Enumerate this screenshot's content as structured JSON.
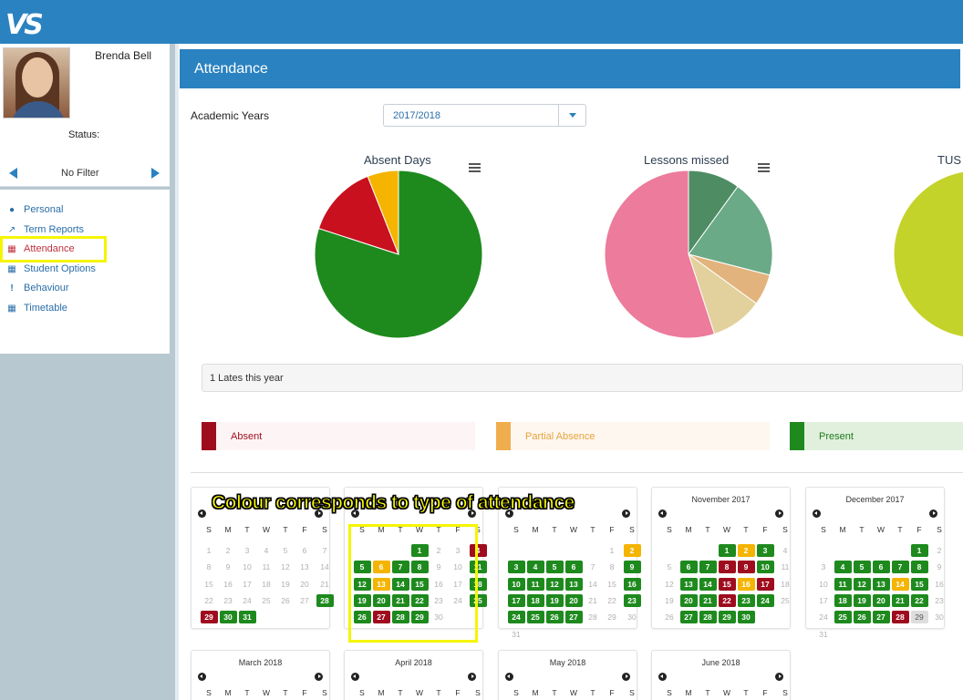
{
  "header": {
    "logo": "VS"
  },
  "profile": {
    "name": "Brenda Bell",
    "status_label": "Status:",
    "filter": "No Filter"
  },
  "nav": [
    {
      "label": "Personal",
      "icon": "user-icon",
      "active": false
    },
    {
      "label": "Term Reports",
      "icon": "line-chart-icon",
      "active": false
    },
    {
      "label": "Attendance",
      "icon": "calendar-icon",
      "active": true
    },
    {
      "label": "Student Options",
      "icon": "calendar-icon",
      "active": false
    },
    {
      "label": "Behaviour",
      "icon": "exclamation-icon",
      "active": false
    },
    {
      "label": "Timetable",
      "icon": "calendar-icon",
      "active": false
    }
  ],
  "page": {
    "title": "Attendance",
    "academic_years_label": "Academic Years",
    "academic_year": "2017/2018"
  },
  "chart_data": [
    {
      "type": "pie",
      "title": "Absent Days",
      "slices": [
        {
          "value": 80,
          "color": "#1e8a1e"
        },
        {
          "value": 14,
          "color": "#c8101e"
        },
        {
          "value": 6,
          "color": "#f4b400"
        }
      ]
    },
    {
      "type": "pie",
      "title": "Lessons missed",
      "slices": [
        {
          "value": 10,
          "color": "#4e8c64"
        },
        {
          "value": 19,
          "color": "#6aaa86"
        },
        {
          "value": 6,
          "color": "#e2b37c"
        },
        {
          "value": 10,
          "color": "#e2d19c"
        },
        {
          "value": 55,
          "color": "#ec7b9c"
        }
      ]
    },
    {
      "type": "pie",
      "title": "TUS",
      "slices": [
        {
          "value": 100,
          "color": "#c4d32a"
        }
      ]
    }
  ],
  "lates": "1 Lates this year",
  "legend": [
    {
      "label": "Absent",
      "swatch": "#9e0c1e",
      "bg": "#fdf5f5",
      "text": "#9e0c1e"
    },
    {
      "label": "Partial Absence",
      "swatch": "#f0ad4e",
      "bg": "#fdf7ef",
      "text": "#e8a33c"
    },
    {
      "label": "Present",
      "swatch": "#1e8a1e",
      "bg": "#e0f0dc",
      "text": "#1e7a1e"
    }
  ],
  "weekdays": [
    "S",
    "M",
    "T",
    "W",
    "T",
    "F",
    "S"
  ],
  "annotation": "Colour corresponds to type of attendance",
  "calendars": [
    {
      "title": "",
      "start": 0,
      "days": 31,
      "status": {
        "28": "p",
        "29": "a",
        "30": "p",
        "31": "p"
      }
    },
    {
      "title": "",
      "start": 3,
      "days": 30,
      "status": {
        "1": "p",
        "4": "a",
        "5": "p",
        "6": "h",
        "7": "p",
        "8": "p",
        "11": "p",
        "12": "p",
        "13": "h",
        "14": "p",
        "15": "p",
        "18": "p",
        "19": "p",
        "20": "p",
        "21": "p",
        "22": "p",
        "25": "p",
        "26": "p",
        "27": "a",
        "28": "p",
        "29": "p"
      }
    },
    {
      "title": "",
      "start": 5,
      "days": 31,
      "status": {
        "2": "h",
        "3": "p",
        "4": "p",
        "5": "p",
        "6": "p",
        "9": "p",
        "10": "p",
        "11": "p",
        "12": "p",
        "13": "p",
        "16": "p",
        "17": "p",
        "18": "p",
        "19": "p",
        "20": "p",
        "23": "p",
        "24": "p",
        "25": "p",
        "26": "p",
        "27": "p"
      }
    },
    {
      "title": "November 2017",
      "start": 3,
      "days": 30,
      "status": {
        "1": "p",
        "2": "h",
        "3": "p",
        "6": "p",
        "7": "p",
        "8": "a",
        "9": "a",
        "10": "p",
        "13": "p",
        "14": "p",
        "15": "a",
        "16": "h",
        "17": "a",
        "20": "p",
        "21": "p",
        "22": "a",
        "23": "p",
        "24": "p",
        "27": "p",
        "28": "p",
        "29": "p",
        "30": "p"
      }
    },
    {
      "title": "December 2017",
      "start": 5,
      "days": 31,
      "status": {
        "1": "p",
        "4": "p",
        "5": "p",
        "6": "p",
        "7": "p",
        "8": "p",
        "11": "p",
        "12": "p",
        "13": "p",
        "14": "h",
        "15": "p",
        "18": "p",
        "19": "p",
        "20": "p",
        "21": "p",
        "22": "p",
        "25": "p",
        "26": "p",
        "27": "p",
        "28": "a",
        "29": "t"
      }
    },
    {
      "title": "March 2018",
      "start": 4,
      "days": 31,
      "status": {}
    },
    {
      "title": "April 2018",
      "start": 0,
      "days": 30,
      "status": {}
    },
    {
      "title": "May 2018",
      "start": 2,
      "days": 31,
      "status": {}
    },
    {
      "title": "June 2018",
      "start": 5,
      "days": 30,
      "status": {}
    }
  ]
}
